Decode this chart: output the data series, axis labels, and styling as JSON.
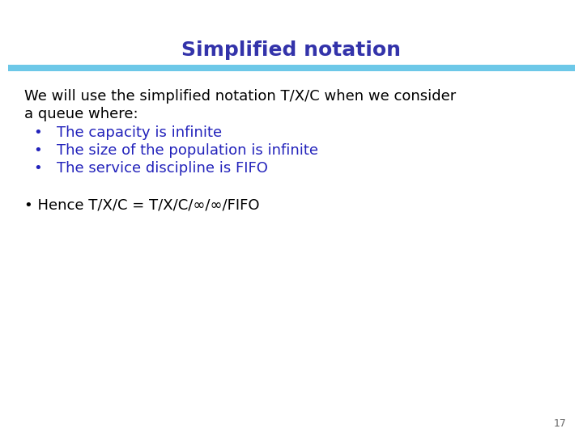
{
  "title": "Simplified notation",
  "title_color": "#3333aa",
  "title_fontsize": 18,
  "bar_color": "#6dc8e8",
  "background_color": "#ffffff",
  "body_text_color": "#000000",
  "bullet_text_color": "#2222bb",
  "body_intro_line1": "We will use the simplified notation T/X/C when we consider",
  "body_intro_line2": "a queue where:",
  "bullets": [
    "The capacity is infinite",
    "The size of the population is infinite",
    "The service discipline is FIFO"
  ],
  "hence_text": "• Hence T/X/C = T/X/C/∞/∞/FIFO",
  "page_number": "17",
  "body_fontsize": 13,
  "bullet_fontsize": 13,
  "hence_fontsize": 13
}
